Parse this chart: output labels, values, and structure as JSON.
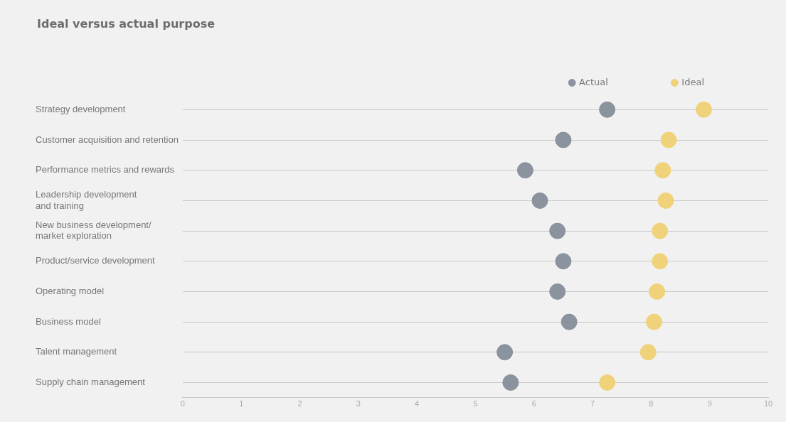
{
  "chart_data": {
    "type": "scatter",
    "title": "Ideal versus actual purpose",
    "categories": [
      "Strategy development",
      "Customer acquisition and retention",
      "Performance metrics and rewards",
      "Leadership development\nand training",
      "New business development/\nmarket exploration",
      "Product/service development",
      "Operating model",
      "Business model",
      "Talent management",
      "Supply chain management"
    ],
    "series": [
      {
        "name": "Actual",
        "color": "#8a939e",
        "values": [
          7.25,
          6.5,
          5.85,
          6.1,
          6.4,
          6.5,
          6.4,
          6.6,
          5.5,
          5.6
        ]
      },
      {
        "name": "Ideal",
        "color": "#f0d27a",
        "values": [
          8.9,
          8.3,
          8.2,
          8.25,
          8.15,
          8.15,
          8.1,
          8.05,
          7.95,
          7.25
        ]
      }
    ],
    "xlim": [
      0,
      10
    ],
    "xticks": [
      0,
      1,
      2,
      3,
      4,
      5,
      6,
      7,
      8,
      9,
      10
    ],
    "orientation": "horizontal",
    "grid": "y",
    "legend": "top right",
    "marker": "circle"
  }
}
